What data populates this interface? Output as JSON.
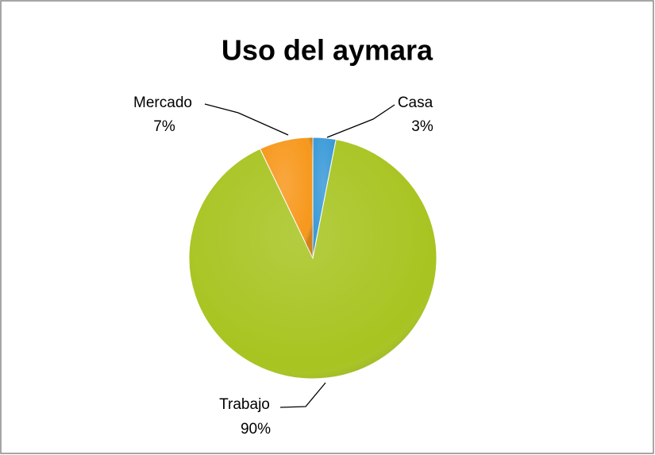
{
  "chart_data": {
    "type": "pie",
    "title": "Uso del aymara",
    "categories": [
      "Casa",
      "Trabajo",
      "Mercado"
    ],
    "values": [
      3,
      90,
      7
    ],
    "value_labels": [
      "3%",
      "90%",
      "7%"
    ],
    "colors": [
      "#3b9ad8",
      "#a7c420",
      "#f7981d"
    ]
  }
}
